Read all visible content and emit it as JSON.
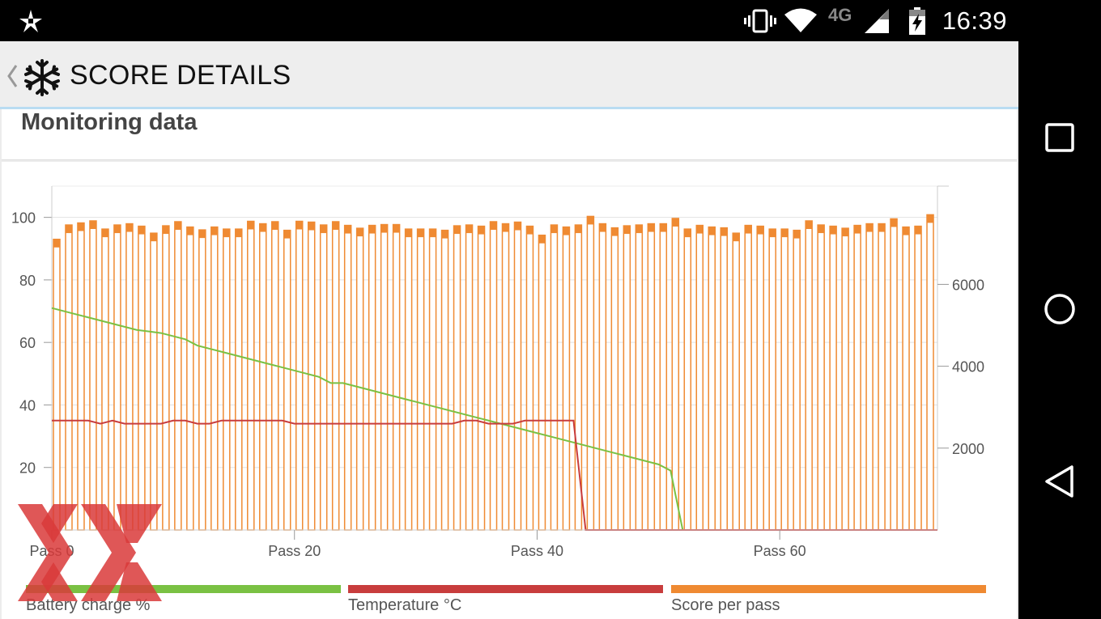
{
  "status_bar": {
    "time": "16:39",
    "network_label": "4G",
    "icons": [
      "app-notification-icon",
      "vibrate-icon",
      "wifi-icon",
      "cell-signal-icon",
      "battery-charging-icon"
    ]
  },
  "app_bar": {
    "title": "SCORE DETAILS",
    "icons": [
      "chevron-left-icon",
      "snowflake-logo-icon"
    ]
  },
  "section": {
    "title": "Monitoring data"
  },
  "chart_data": {
    "type": "bar",
    "left_axis": {
      "min": 0,
      "max": 110,
      "ticks": [
        20,
        40,
        60,
        80,
        100
      ]
    },
    "right_axis": {
      "min": 0,
      "max": 8400,
      "ticks": [
        2000,
        4000,
        6000
      ]
    },
    "x_axis": {
      "min": 0,
      "max": 73,
      "ticks": [
        0,
        20,
        40,
        60
      ],
      "tick_labels": [
        "Pass 0",
        "Pass 20",
        "Pass 40",
        "Pass 60"
      ]
    },
    "series": [
      {
        "name": "Score per pass",
        "type": "bar",
        "axis": "right",
        "color": "#ef8a32",
        "values": [
          7100,
          7450,
          7500,
          7550,
          7350,
          7450,
          7480,
          7420,
          7250,
          7430,
          7530,
          7400,
          7330,
          7400,
          7350,
          7350,
          7540,
          7480,
          7530,
          7320,
          7540,
          7520,
          7450,
          7530,
          7440,
          7370,
          7440,
          7460,
          7460,
          7350,
          7350,
          7350,
          7320,
          7430,
          7450,
          7420,
          7530,
          7480,
          7520,
          7420,
          7200,
          7450,
          7400,
          7450,
          7660,
          7480,
          7380,
          7430,
          7450,
          7480,
          7480,
          7610,
          7350,
          7440,
          7400,
          7380,
          7250,
          7440,
          7420,
          7350,
          7350,
          7320,
          7550,
          7450,
          7420,
          7370,
          7440,
          7480,
          7480,
          7600,
          7400,
          7420,
          7700
        ]
      },
      {
        "name": "Battery charge %",
        "type": "line",
        "axis": "left",
        "color": "#7ac143",
        "values": [
          71,
          70,
          69,
          68,
          67,
          66,
          65,
          64,
          63.5,
          63,
          62,
          61,
          59,
          58,
          57,
          56,
          55,
          54,
          53,
          52,
          51,
          50,
          49,
          47,
          47,
          46,
          45,
          44,
          43,
          42,
          41,
          40,
          39,
          38,
          37,
          36,
          35,
          34,
          33,
          32,
          31,
          30,
          29,
          28,
          27,
          26,
          25,
          24,
          23,
          22,
          21,
          19,
          0,
          0
        ]
      },
      {
        "name": "Temperature °C",
        "type": "line",
        "axis": "left",
        "color": "#c83d3d",
        "values": [
          35,
          35,
          35,
          35,
          34,
          35,
          34,
          34,
          34,
          34,
          35,
          35,
          34,
          34,
          35,
          35,
          35,
          35,
          35,
          35,
          34,
          34,
          34,
          34,
          34,
          34,
          34,
          34,
          34,
          34,
          34,
          34,
          34,
          34,
          35,
          35,
          34,
          34,
          34,
          35,
          35,
          35,
          35,
          35,
          0
        ]
      }
    ]
  },
  "legend": [
    {
      "label": "Battery charge %",
      "color": "#7ac143"
    },
    {
      "label": "Temperature °C",
      "color": "#c83d3d"
    },
    {
      "label": "Score per pass",
      "color": "#ef8a32"
    }
  ],
  "nav_bar": {
    "icons": [
      "recents-square-icon",
      "home-circle-icon",
      "back-triangle-icon"
    ]
  }
}
